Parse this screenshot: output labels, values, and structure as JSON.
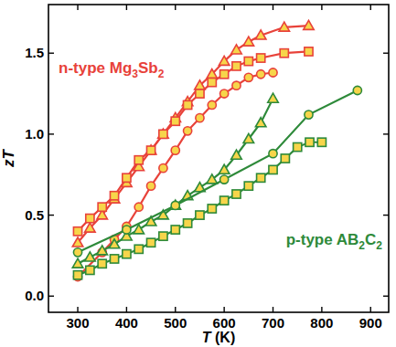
{
  "chart_data": {
    "type": "line",
    "x_label": "T (K)",
    "y_label": "zT",
    "xlim": [
      240,
      937
    ],
    "ylim": [
      -0.1,
      1.8
    ],
    "xticks": [
      300,
      400,
      500,
      600,
      700,
      800,
      900
    ],
    "yticks": [
      {
        "value": 0,
        "label": "0.0"
      },
      0.5,
      {
        "value": 1,
        "label": "1.0"
      },
      1.5
    ],
    "grid": false,
    "annotations": [
      {
        "text": "n-type Mg3Sb2",
        "color": "#e8423a"
      },
      {
        "text": "p-type AB2C2",
        "color": "#2e8a3a"
      }
    ],
    "series": [
      {
        "color": "#e8423a",
        "marker": "triangle",
        "x": [
          300,
          325,
          350,
          375,
          400,
          425,
          450,
          475,
          500,
          525,
          550,
          575,
          600,
          625,
          650,
          675,
          723,
          773
        ],
        "values": [
          0.33,
          0.42,
          0.5,
          0.6,
          0.7,
          0.8,
          0.9,
          1.0,
          1.1,
          1.2,
          1.3,
          1.37,
          1.45,
          1.52,
          1.57,
          1.61,
          1.66,
          1.67
        ]
      },
      {
        "color": "#e8423a",
        "marker": "square",
        "x": [
          300,
          325,
          350,
          375,
          400,
          425,
          450,
          475,
          500,
          525,
          550,
          575,
          600,
          625,
          650,
          675,
          723,
          773
        ],
        "values": [
          0.4,
          0.48,
          0.55,
          0.62,
          0.73,
          0.84,
          0.9,
          1.0,
          1.08,
          1.18,
          1.25,
          1.32,
          1.37,
          1.42,
          1.45,
          1.47,
          1.5,
          1.51
        ]
      },
      {
        "color": "#e8423a",
        "marker": "circle",
        "x": [
          300,
          350,
          375,
          400,
          425,
          450,
          475,
          500,
          525,
          550,
          575,
          600,
          625,
          650,
          675,
          700
        ],
        "values": [
          0.12,
          0.27,
          0.35,
          0.43,
          0.55,
          0.68,
          0.79,
          0.9,
          1.02,
          1.1,
          1.18,
          1.25,
          1.3,
          1.35,
          1.37,
          1.38
        ]
      },
      {
        "color": "#2e8a3a",
        "marker": "triangle",
        "x": [
          300,
          325,
          350,
          375,
          400,
          425,
          450,
          475,
          500,
          525,
          550,
          575,
          600,
          625,
          650,
          675,
          700
        ],
        "values": [
          0.2,
          0.24,
          0.28,
          0.32,
          0.37,
          0.41,
          0.46,
          0.5,
          0.56,
          0.62,
          0.67,
          0.72,
          0.78,
          0.87,
          0.97,
          1.07,
          1.22
        ]
      },
      {
        "color": "#2e8a3a",
        "marker": "circle",
        "x": [
          300,
          400,
          500,
          600,
          700,
          773,
          873
        ],
        "values": [
          0.27,
          0.41,
          0.56,
          0.72,
          0.88,
          1.12,
          1.27
        ]
      },
      {
        "color": "#2e8a3a",
        "marker": "square",
        "x": [
          300,
          325,
          350,
          375,
          400,
          425,
          450,
          475,
          500,
          525,
          550,
          575,
          600,
          625,
          650,
          675,
          700,
          725,
          750,
          775,
          800
        ],
        "values": [
          0.13,
          0.16,
          0.2,
          0.23,
          0.26,
          0.29,
          0.33,
          0.37,
          0.41,
          0.45,
          0.5,
          0.54,
          0.59,
          0.63,
          0.68,
          0.73,
          0.78,
          0.85,
          0.92,
          0.95,
          0.95
        ]
      }
    ]
  }
}
